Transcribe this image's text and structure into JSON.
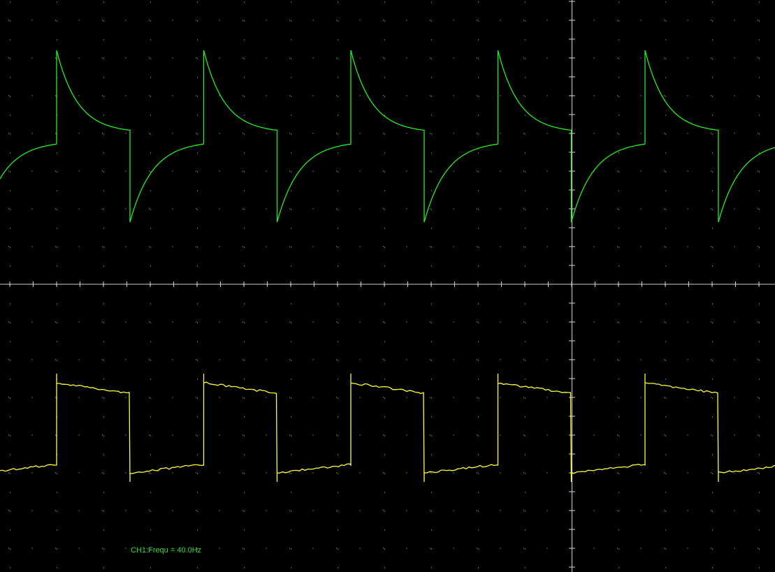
{
  "measurement": {
    "text": "CH1:Frequ = 40.0Hz"
  }
}
